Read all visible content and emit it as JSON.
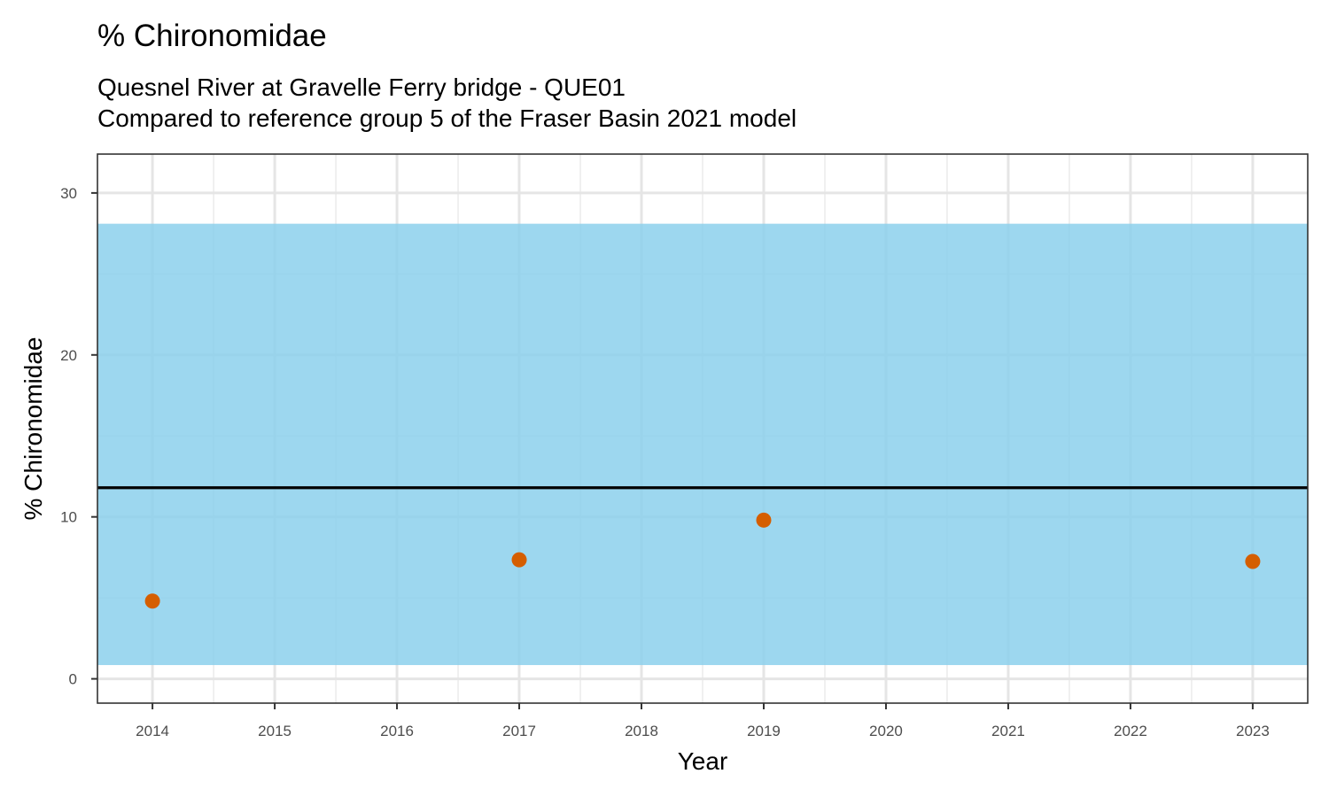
{
  "chart_data": {
    "type": "scatter",
    "title": "% Chironomidae",
    "subtitle_lines": [
      "Quesnel River at Gravelle Ferry bridge - QUE01",
      "Compared to reference group 5 of the Fraser Basin 2021 model"
    ],
    "xlabel": "Year",
    "ylabel": "% Chironomidae",
    "x_ticks": [
      2014,
      2015,
      2016,
      2017,
      2018,
      2019,
      2020,
      2021,
      2022,
      2023
    ],
    "y_ticks": [
      0,
      10,
      20,
      30
    ],
    "xlim": [
      2013.55,
      2023.45
    ],
    "ylim": [
      -1.5,
      32.4
    ],
    "grid": true,
    "reference_band": {
      "lower": 0.85,
      "upper": 28.1,
      "color": "#87CEEB"
    },
    "reference_line": {
      "value": 11.8,
      "color": "#000000"
    },
    "points": [
      {
        "x": 2014,
        "y": 4.8
      },
      {
        "x": 2017,
        "y": 7.35
      },
      {
        "x": 2019,
        "y": 9.8
      },
      {
        "x": 2023,
        "y": 7.25
      }
    ],
    "point_color": "#D55E00"
  }
}
